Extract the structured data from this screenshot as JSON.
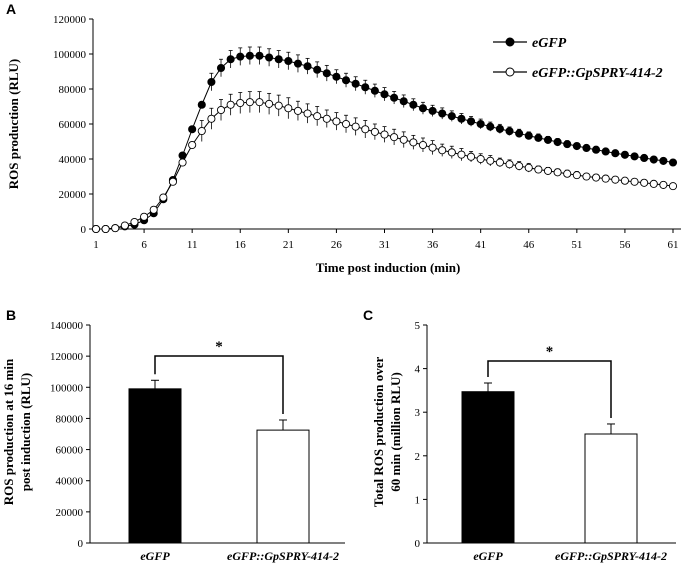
{
  "chart_data": [
    {
      "panel": "A",
      "type": "line",
      "title": "",
      "xlabel": "Time post induction (min)",
      "ylabel": "ROS production (RLU)",
      "x": [
        1,
        2,
        3,
        4,
        5,
        6,
        7,
        8,
        9,
        10,
        11,
        12,
        13,
        14,
        15,
        16,
        17,
        18,
        19,
        20,
        21,
        22,
        23,
        24,
        25,
        26,
        27,
        28,
        29,
        30,
        31,
        32,
        33,
        34,
        35,
        36,
        37,
        38,
        39,
        40,
        41,
        42,
        43,
        44,
        45,
        46,
        47,
        48,
        49,
        50,
        51,
        52,
        53,
        54,
        55,
        56,
        57,
        58,
        59,
        60,
        61
      ],
      "xticks": [
        "1",
        "6",
        "11",
        "16",
        "21",
        "26",
        "31",
        "36",
        "41",
        "46",
        "51",
        "56",
        "61"
      ],
      "yticks": [
        "0",
        "20000",
        "40000",
        "60000",
        "80000",
        "100000",
        "120000"
      ],
      "ylim": [
        0,
        120000
      ],
      "legend_position": "top-right",
      "series": [
        {
          "name": "eGFP",
          "marker": "filled-circle",
          "values": [
            0,
            0,
            500,
            1500,
            2500,
            5000,
            9000,
            17000,
            28000,
            42000,
            57000,
            71000,
            84000,
            92000,
            97000,
            98500,
            99000,
            99000,
            98000,
            97000,
            96000,
            94500,
            93000,
            91000,
            89000,
            87000,
            85000,
            83000,
            81000,
            79000,
            77000,
            75000,
            73000,
            71000,
            69000,
            67500,
            66000,
            64500,
            63000,
            61500,
            60000,
            58500,
            57200,
            55900,
            54600,
            53300,
            52100,
            50900,
            49700,
            48500,
            47400,
            46300,
            45300,
            44300,
            43300,
            42400,
            41500,
            40600,
            39700,
            38900,
            38000
          ],
          "errors": [
            0,
            0,
            0,
            0,
            0,
            0,
            0,
            0,
            0,
            0,
            0,
            0,
            5000,
            5000,
            5000,
            5000,
            5000,
            5000,
            5000,
            5000,
            5000,
            5000,
            4500,
            4500,
            4500,
            4000,
            4000,
            4000,
            4000,
            3800,
            3800,
            3600,
            3600,
            3400,
            3400,
            3200,
            3200,
            3000,
            3000,
            2800,
            2800,
            2600,
            2600,
            2400,
            2400,
            2200,
            2200,
            2000,
            2000,
            2000,
            1800,
            1800,
            1800,
            1600,
            1600,
            1600,
            1500,
            1500,
            1500,
            1500,
            1500
          ]
        },
        {
          "name": "eGFP::GpSPRY-414-2",
          "marker": "open-circle",
          "values": [
            0,
            0,
            500,
            2000,
            4000,
            7000,
            11000,
            18000,
            27000,
            38000,
            48000,
            56000,
            63000,
            68000,
            71000,
            72000,
            72500,
            72500,
            71500,
            70500,
            69000,
            67500,
            66000,
            64500,
            63000,
            61500,
            60000,
            58500,
            57000,
            55500,
            54000,
            52500,
            51000,
            49500,
            48000,
            46500,
            45000,
            43800,
            42500,
            41300,
            40000,
            39000,
            38000,
            37000,
            36000,
            35000,
            34000,
            33200,
            32400,
            31600,
            30800,
            30000,
            29400,
            28800,
            28200,
            27600,
            27000,
            26400,
            25800,
            25200,
            24500
          ],
          "errors": [
            0,
            0,
            0,
            0,
            0,
            0,
            0,
            0,
            0,
            0,
            0,
            6000,
            6000,
            6000,
            6000,
            6000,
            6000,
            6000,
            6000,
            6000,
            6000,
            5500,
            5500,
            5500,
            5000,
            5000,
            5000,
            5000,
            5000,
            4500,
            4500,
            4500,
            4500,
            4000,
            4000,
            4000,
            3500,
            3500,
            3500,
            3000,
            3000,
            3000,
            2500,
            2500,
            2500,
            2500,
            2000,
            2000,
            2000,
            2000,
            2000,
            1500,
            1500,
            1500,
            1500,
            1500,
            1500,
            1500,
            1500,
            1500,
            1500
          ]
        }
      ]
    },
    {
      "panel": "B",
      "type": "bar",
      "title": "",
      "ylabel_line1": "ROS production at 16 min",
      "ylabel_line2": "post induction (RLU)",
      "categories": [
        "eGFP",
        "eGFP::GpSPRY-414-2"
      ],
      "values": [
        99000,
        72500
      ],
      "errors": [
        5500,
        6500
      ],
      "ylim": [
        0,
        140000
      ],
      "yticks": [
        "0",
        "20000",
        "40000",
        "60000",
        "80000",
        "100000",
        "120000",
        "140000"
      ],
      "significance": "*"
    },
    {
      "panel": "C",
      "type": "bar",
      "title": "",
      "ylabel_line1": "Total ROS production over",
      "ylabel_line2": "60 min (million RLU)",
      "categories": [
        "eGFP",
        "eGFP::GpSPRY-414-2"
      ],
      "values": [
        3.47,
        2.5
      ],
      "errors": [
        0.2,
        0.23
      ],
      "ylim": [
        0,
        5
      ],
      "yticks": [
        "0",
        "1",
        "2",
        "3",
        "4",
        "5"
      ],
      "significance": "*"
    }
  ]
}
